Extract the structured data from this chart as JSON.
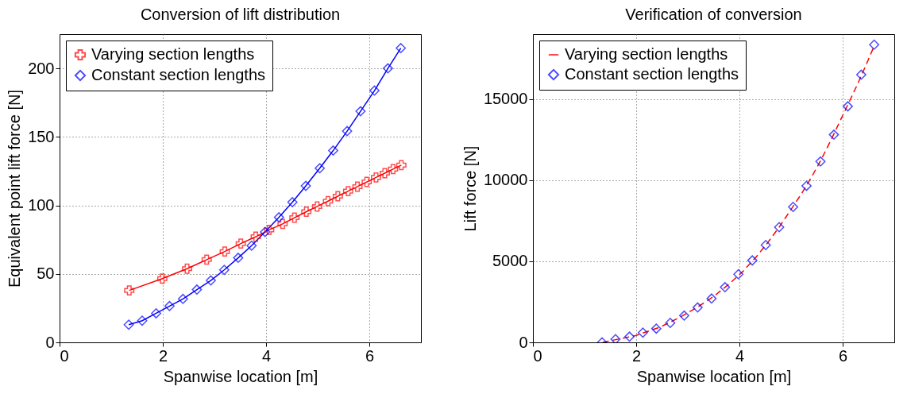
{
  "chart_data": [
    {
      "type": "line",
      "title": "Conversion of lift distribution",
      "xlabel": "Spanwise location [m]",
      "ylabel": "Equivalent point lift force [N]",
      "xlim": [
        0,
        7
      ],
      "xticks": [
        0,
        2,
        4,
        6
      ],
      "ylim": [
        0,
        225
      ],
      "yticks": [
        0,
        50,
        100,
        150,
        200
      ],
      "grid": true,
      "legend": "top left",
      "series": [
        {
          "name": "Varying section lengths",
          "type": "line",
          "marker": "cross",
          "line_style": "solid",
          "color": "#ff0000",
          "x": [
            1.35,
            1.99,
            2.47,
            2.85,
            3.2,
            3.51,
            3.8,
            4.06,
            4.32,
            4.55,
            4.78,
            4.99,
            5.2,
            5.39,
            5.59,
            5.77,
            5.95,
            6.13,
            6.3,
            6.46,
            6.62
          ],
          "values": [
            37.9,
            46.5,
            53.8,
            60.4,
            66.3,
            72.1,
            77.1,
            82.1,
            86.5,
            91.0,
            95.4,
            99.2,
            103.1,
            106.7,
            110.4,
            113.7,
            117.1,
            120.4,
            123.5,
            126.5,
            129.4
          ]
        },
        {
          "name": "Constant section lengths",
          "type": "line",
          "marker": "diamond",
          "line_style": "solid",
          "color": "#0000ff",
          "x": [
            1.34,
            1.6,
            1.87,
            2.13,
            2.39,
            2.66,
            2.93,
            3.19,
            3.46,
            3.72,
            3.98,
            4.25,
            4.51,
            4.77,
            5.04,
            5.3,
            5.57,
            5.83,
            6.1,
            6.36,
            6.61
          ],
          "values": [
            12.9,
            15.8,
            21.2,
            26.5,
            31.7,
            38.5,
            45.2,
            52.9,
            61.7,
            70.6,
            80.6,
            91.3,
            102.3,
            114.2,
            127.1,
            140.0,
            154.2,
            168.7,
            183.8,
            200.0,
            214.8
          ]
        }
      ]
    },
    {
      "type": "line",
      "title": "Verification of conversion",
      "xlabel": "Spanwise location [m]",
      "ylabel": "Lift force [N]",
      "xlim": [
        0,
        7
      ],
      "xticks": [
        0,
        2,
        4,
        6
      ],
      "ylim": [
        0,
        19000
      ],
      "yticks": [
        0,
        5000,
        10000,
        15000
      ],
      "grid": true,
      "legend": "top left",
      "series": [
        {
          "name": "Varying section lengths",
          "type": "line",
          "marker": "none",
          "line_style": "dashed",
          "color": "#ff0000",
          "x": [
            1.35,
            1.99,
            2.47,
            2.85,
            3.2,
            3.51,
            3.8,
            4.06,
            4.32,
            4.55,
            4.78,
            4.99,
            5.2,
            5.39,
            5.59,
            5.77,
            5.95,
            6.13,
            6.3,
            6.46,
            6.62
          ],
          "values": [
            0,
            420,
            950,
            1550,
            2200,
            2850,
            3600,
            4350,
            5250,
            6150,
            7150,
            8150,
            9150,
            10150,
            11300,
            12450,
            13650,
            14850,
            16000,
            17150,
            18350
          ]
        },
        {
          "name": "Constant section lengths",
          "type": "scatter",
          "marker": "diamond",
          "color": "#0000ff",
          "x": [
            1.34,
            1.6,
            1.87,
            2.13,
            2.39,
            2.66,
            2.93,
            3.19,
            3.46,
            3.72,
            3.98,
            4.25,
            4.51,
            4.77,
            5.04,
            5.3,
            5.57,
            5.83,
            6.1,
            6.36,
            6.61
          ],
          "values": [
            0,
            200,
            350,
            600,
            850,
            1200,
            1650,
            2150,
            2700,
            3400,
            4200,
            5050,
            6000,
            7100,
            8350,
            9650,
            11150,
            12800,
            14550,
            16500,
            18350
          ]
        }
      ]
    }
  ]
}
